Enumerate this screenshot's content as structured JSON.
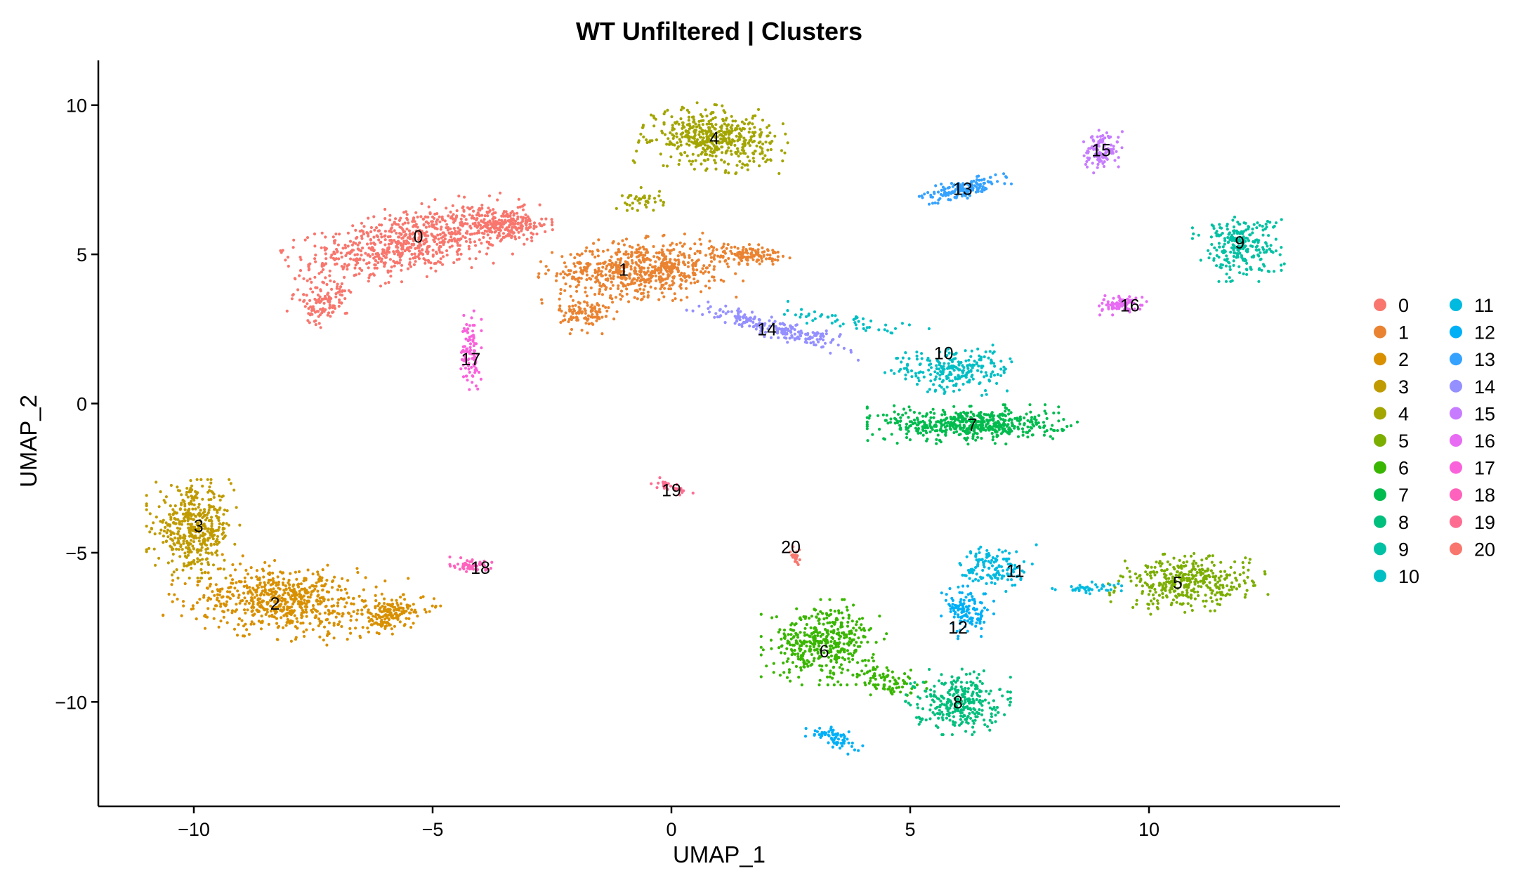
{
  "chart_data": {
    "type": "scatter",
    "title": "WT Unfiltered | Clusters",
    "xlabel": "UMAP_1",
    "ylabel": "UMAP_2",
    "xlim": [
      -12,
      14
    ],
    "ylim": [
      -13.5,
      11.5
    ],
    "xticks": [
      -10,
      -5,
      0,
      5,
      10
    ],
    "yticks": [
      -10,
      -5,
      0,
      5,
      10
    ],
    "xtick_labels": [
      "−10",
      "−5",
      "0",
      "5",
      "10"
    ],
    "ytick_labels": [
      "−10",
      "−5",
      "0",
      "5",
      "10"
    ],
    "grid": false,
    "legend_position": "right",
    "legend_columns": 2,
    "series": [
      {
        "name": "0",
        "color": "#F8766D",
        "label_pos": [
          -5.3,
          5.6
        ],
        "blobs": [
          {
            "c": [
              -5.5,
              5.4
            ],
            "r": [
              2.4,
              1.1
            ],
            "rot": 18,
            "n": 700
          },
          {
            "c": [
              -3.5,
              6.0
            ],
            "r": [
              1.0,
              0.6
            ],
            "rot": 0,
            "n": 220
          },
          {
            "c": [
              -7.3,
              3.4
            ],
            "r": [
              0.6,
              0.9
            ],
            "rot": -30,
            "n": 120
          }
        ]
      },
      {
        "name": "1",
        "color": "#EA8331",
        "label_pos": [
          -1.0,
          4.5
        ],
        "blobs": [
          {
            "c": [
              -0.6,
              4.5
            ],
            "r": [
              2.0,
              1.0
            ],
            "rot": 5,
            "n": 650
          },
          {
            "c": [
              1.6,
              5.0
            ],
            "r": [
              0.8,
              0.3
            ],
            "rot": 0,
            "n": 120
          },
          {
            "c": [
              -1.8,
              3.0
            ],
            "r": [
              0.6,
              0.6
            ],
            "rot": 0,
            "n": 100
          }
        ]
      },
      {
        "name": "2",
        "color": "#D89000",
        "label_pos": [
          -8.3,
          -6.7
        ],
        "blobs": [
          {
            "c": [
              -8.1,
              -6.6
            ],
            "r": [
              2.2,
              1.2
            ],
            "rot": -10,
            "n": 650
          },
          {
            "c": [
              -5.9,
              -7.1
            ],
            "r": [
              1.0,
              0.5
            ],
            "rot": 25,
            "n": 150
          }
        ]
      },
      {
        "name": "3",
        "color": "#C09B00",
        "label_pos": [
          -9.9,
          -4.1
        ],
        "blobs": [
          {
            "c": [
              -10.0,
              -4.2
            ],
            "r": [
              0.9,
              1.5
            ],
            "rot": 0,
            "n": 450
          }
        ]
      },
      {
        "name": "4",
        "color": "#A3A500",
        "label_pos": [
          0.9,
          8.9
        ],
        "blobs": [
          {
            "c": [
              0.9,
              8.9
            ],
            "r": [
              1.4,
              1.0
            ],
            "rot": -10,
            "n": 480
          },
          {
            "c": [
              -0.6,
              6.8
            ],
            "r": [
              0.5,
              0.4
            ],
            "rot": 0,
            "n": 40
          }
        ]
      },
      {
        "name": "5",
        "color": "#7CAE00",
        "label_pos": [
          10.6,
          -6.0
        ],
        "blobs": [
          {
            "c": [
              10.8,
              -6.0
            ],
            "r": [
              1.5,
              0.9
            ],
            "rot": 5,
            "n": 380
          }
        ]
      },
      {
        "name": "6",
        "color": "#39B600",
        "label_pos": [
          3.2,
          -8.3
        ],
        "blobs": [
          {
            "c": [
              3.2,
              -8.0
            ],
            "r": [
              1.2,
              1.3
            ],
            "rot": 0,
            "n": 420
          },
          {
            "c": [
              4.5,
              -9.3
            ],
            "r": [
              0.8,
              0.5
            ],
            "rot": -20,
            "n": 80
          }
        ]
      },
      {
        "name": "7",
        "color": "#00BB4E",
        "label_pos": [
          6.3,
          -0.7
        ],
        "blobs": [
          {
            "c": [
              6.3,
              -0.7
            ],
            "r": [
              2.0,
              0.6
            ],
            "rot": 0,
            "n": 520
          }
        ]
      },
      {
        "name": "8",
        "color": "#00BF7D",
        "label_pos": [
          6.0,
          -10.0
        ],
        "blobs": [
          {
            "c": [
              6.0,
              -10.0
            ],
            "r": [
              1.0,
              1.0
            ],
            "rot": 0,
            "n": 300
          }
        ]
      },
      {
        "name": "9",
        "color": "#00C1A3",
        "label_pos": [
          11.9,
          5.4
        ],
        "blobs": [
          {
            "c": [
              11.9,
              5.3
            ],
            "r": [
              0.9,
              1.1
            ],
            "rot": 0,
            "n": 250
          }
        ]
      },
      {
        "name": "10",
        "color": "#00BFC4",
        "label_pos": [
          5.7,
          1.7
        ],
        "blobs": [
          {
            "c": [
              5.9,
              1.1
            ],
            "r": [
              1.3,
              0.8
            ],
            "rot": 0,
            "n": 230
          },
          {
            "c": [
              3.5,
              2.8
            ],
            "r": [
              1.8,
              0.3
            ],
            "rot": -15,
            "n": 50
          }
        ]
      },
      {
        "name": "11",
        "color": "#00BAE0",
        "label_pos": [
          7.2,
          -5.6
        ],
        "blobs": [
          {
            "c": [
              6.8,
              -5.5
            ],
            "r": [
              0.8,
              0.8
            ],
            "rot": 0,
            "n": 140
          },
          {
            "c": [
              8.8,
              -6.2
            ],
            "r": [
              0.9,
              0.2
            ],
            "rot": 0,
            "n": 40
          }
        ]
      },
      {
        "name": "12",
        "color": "#00B0F6",
        "label_pos": [
          6.0,
          -7.5
        ],
        "blobs": [
          {
            "c": [
              6.2,
              -7.0
            ],
            "r": [
              0.5,
              0.8
            ],
            "rot": 0,
            "n": 120
          },
          {
            "c": [
              3.4,
              -11.2
            ],
            "r": [
              0.6,
              0.3
            ],
            "rot": -30,
            "n": 70
          }
        ]
      },
      {
        "name": "13",
        "color": "#35A2FF",
        "label_pos": [
          6.1,
          7.2
        ],
        "blobs": [
          {
            "c": [
              6.1,
              7.2
            ],
            "r": [
              0.9,
              0.3
            ],
            "rot": 25,
            "n": 150
          }
        ]
      },
      {
        "name": "14",
        "color": "#9590FF",
        "label_pos": [
          2.0,
          2.5
        ],
        "blobs": [
          {
            "c": [
              2.2,
              2.5
            ],
            "r": [
              1.8,
              0.3
            ],
            "rot": -22,
            "n": 210
          }
        ]
      },
      {
        "name": "15",
        "color": "#C77CFF",
        "label_pos": [
          9.0,
          8.5
        ],
        "blobs": [
          {
            "c": [
              9.0,
              8.5
            ],
            "r": [
              0.4,
              0.7
            ],
            "rot": 0,
            "n": 110
          }
        ]
      },
      {
        "name": "16",
        "color": "#E76BF3",
        "label_pos": [
          9.6,
          3.3
        ],
        "blobs": [
          {
            "c": [
              9.4,
              3.3
            ],
            "r": [
              0.5,
              0.3
            ],
            "rot": 0,
            "n": 80
          }
        ]
      },
      {
        "name": "17",
        "color": "#FA62DB",
        "label_pos": [
          -4.2,
          1.5
        ],
        "blobs": [
          {
            "c": [
              -4.2,
              1.8
            ],
            "r": [
              0.2,
              1.3
            ],
            "rot": 0,
            "n": 100
          }
        ]
      },
      {
        "name": "18",
        "color": "#FF62BC",
        "label_pos": [
          -4.0,
          -5.5
        ],
        "blobs": [
          {
            "c": [
              -4.2,
              -5.4
            ],
            "r": [
              0.4,
              0.3
            ],
            "rot": 0,
            "n": 55
          }
        ]
      },
      {
        "name": "19",
        "color": "#FF6C91",
        "label_pos": [
          0.0,
          -2.9
        ],
        "blobs": [
          {
            "c": [
              0.0,
              -2.8
            ],
            "r": [
              0.6,
              0.15
            ],
            "rot": -30,
            "n": 30
          }
        ]
      },
      {
        "name": "20",
        "color": "#F8766D",
        "label_pos": [
          2.5,
          -4.8
        ],
        "blobs": [
          {
            "c": [
              2.6,
              -5.1
            ],
            "r": [
              0.1,
              0.3
            ],
            "rot": 0,
            "n": 20
          }
        ]
      }
    ]
  }
}
